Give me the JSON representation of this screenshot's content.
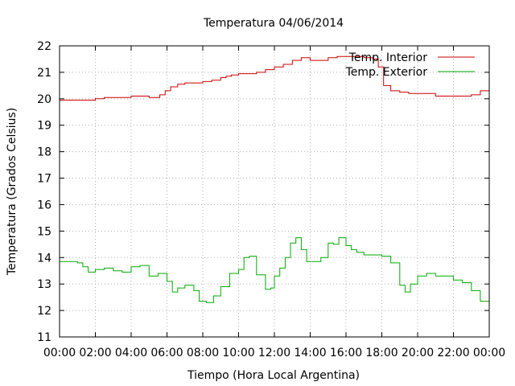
{
  "chart_data": {
    "type": "line",
    "title": "Temperatura 04/06/2014",
    "xlabel": "Tiempo (Hora Local Argentina)",
    "ylabel": "Temperatura (Grados Celsius)",
    "xlim": [
      0,
      24
    ],
    "ylim": [
      11,
      22
    ],
    "grid": true,
    "legend_position": "top-right",
    "x_ticks": [
      "00:00",
      "02:00",
      "04:00",
      "06:00",
      "08:00",
      "10:00",
      "12:00",
      "14:00",
      "16:00",
      "18:00",
      "20:00",
      "22:00",
      "00:00"
    ],
    "y_ticks": [
      "11",
      "12",
      "13",
      "14",
      "15",
      "16",
      "17",
      "18",
      "19",
      "20",
      "21",
      "22"
    ],
    "series": [
      {
        "name": "Temp. Interior",
        "color": "#cc0000",
        "x": [
          0,
          0.5,
          1,
          1.5,
          2,
          2.5,
          3,
          3.5,
          4,
          4.5,
          5,
          5.3,
          5.6,
          5.9,
          6.2,
          6.6,
          7,
          7.5,
          8,
          8.5,
          9,
          9.3,
          9.6,
          10,
          10.5,
          11,
          11.5,
          12,
          12.5,
          13,
          13.5,
          14,
          14.5,
          15,
          15.5,
          16,
          16.5,
          17,
          17.5,
          17.8,
          18.1,
          18.5,
          19,
          19.5,
          20,
          20.5,
          21,
          21.5,
          22,
          22.5,
          23,
          23.5,
          24
        ],
        "y": [
          19.95,
          19.95,
          19.95,
          19.95,
          20.0,
          20.05,
          20.05,
          20.05,
          20.1,
          20.1,
          20.05,
          20.05,
          20.15,
          20.3,
          20.45,
          20.55,
          20.6,
          20.6,
          20.65,
          20.7,
          20.8,
          20.85,
          20.9,
          20.95,
          20.95,
          21.0,
          21.1,
          21.2,
          21.3,
          21.45,
          21.55,
          21.45,
          21.45,
          21.55,
          21.6,
          21.6,
          21.6,
          21.55,
          21.5,
          21.2,
          20.5,
          20.3,
          20.25,
          20.2,
          20.2,
          20.2,
          20.1,
          20.1,
          20.1,
          20.1,
          20.15,
          20.3,
          20.4
        ]
      },
      {
        "name": "Temp. Exterior",
        "color": "#00aa00",
        "x": [
          0,
          0.5,
          1,
          1.3,
          1.6,
          2,
          2.5,
          3,
          3.5,
          4,
          4.5,
          5,
          5.5,
          6,
          6.3,
          6.6,
          7,
          7.5,
          7.8,
          8.2,
          8.6,
          9,
          9.5,
          10,
          10.3,
          10.6,
          11,
          11.5,
          11.8,
          12,
          12.3,
          12.6,
          12.9,
          13.2,
          13.5,
          13.8,
          14.2,
          14.6,
          15,
          15.3,
          15.6,
          16,
          16.3,
          16.6,
          17,
          17.5,
          18,
          18.5,
          19,
          19.3,
          19.6,
          20,
          20.5,
          21,
          21.5,
          22,
          22.5,
          23,
          23.5,
          24
        ],
        "y": [
          13.85,
          13.85,
          13.8,
          13.65,
          13.45,
          13.55,
          13.6,
          13.5,
          13.45,
          13.65,
          13.7,
          13.3,
          13.4,
          13.1,
          12.7,
          12.85,
          12.95,
          12.75,
          12.35,
          12.3,
          12.55,
          12.9,
          13.4,
          13.55,
          14.0,
          14.05,
          13.35,
          12.8,
          12.85,
          13.3,
          13.6,
          14.0,
          14.55,
          14.75,
          14.3,
          13.85,
          13.85,
          14.0,
          14.55,
          14.5,
          14.75,
          14.45,
          14.3,
          14.2,
          14.1,
          14.1,
          14.05,
          13.8,
          12.95,
          12.7,
          13.0,
          13.3,
          13.4,
          13.3,
          13.3,
          13.15,
          13.05,
          12.75,
          12.35,
          12.0
        ]
      }
    ]
  }
}
